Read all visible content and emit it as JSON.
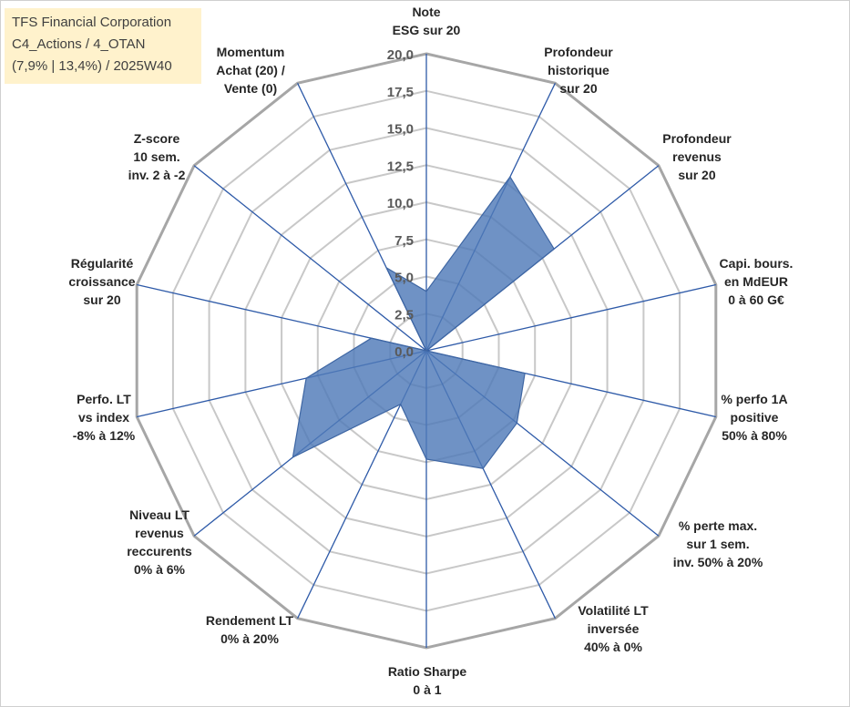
{
  "info_box": {
    "line1": "TFS Financial Corporation",
    "line2": "C4_Actions / 4_OTAN",
    "line3": "(7,9% | 13,4%) / 2025W40"
  },
  "chart_data": {
    "type": "radar",
    "rmax": 20,
    "ticks": [
      "0,0",
      "2,5",
      "5,0",
      "7,5",
      "10,0",
      "12,5",
      "15,0",
      "17,5",
      "20,0"
    ],
    "axes": [
      [
        "Note",
        "ESG sur 20"
      ],
      [
        "Profondeur",
        "historique",
        "sur 20"
      ],
      [
        "Profondeur",
        "revenus",
        "sur 20"
      ],
      [
        "Capi. bours.",
        "en MdEUR",
        "0 à 60 G€"
      ],
      [
        "% perfo 1A",
        "positive",
        "50% à 80%"
      ],
      [
        "% perte max.",
        "sur 1 sem.",
        "inv. 50% à 20%"
      ],
      [
        "Volatilité LT",
        "inversée",
        "40% à 0%"
      ],
      [
        "Ratio Sharpe",
        "0 à 1"
      ],
      [
        "Rendement LT",
        "0% à 20%"
      ],
      [
        "Niveau LT",
        "revenus",
        "reccurents",
        "0% à 6%"
      ],
      [
        "Perfo. LT",
        "vs index",
        "-8% à 12%"
      ],
      [
        "Régularité",
        "croissance",
        "sur 20"
      ],
      [
        "Z-score",
        "10 sem.",
        "inv. 2 à -2"
      ],
      [
        "Momentum",
        "Achat (20) /",
        "Vente (0)"
      ]
    ],
    "values": [
      4.0,
      13.0,
      11.0,
      0.0,
      6.8,
      7.8,
      8.8,
      7.3,
      4.0,
      11.5,
      8.3,
      3.8,
      0.0,
      6.2
    ],
    "colors": {
      "fill": "#4f7ab8",
      "fill_opacity": 0.82,
      "spoke": "#2e5aa8",
      "grid": "#c8c8c8",
      "outer_ring": "#a6a6a6"
    }
  }
}
